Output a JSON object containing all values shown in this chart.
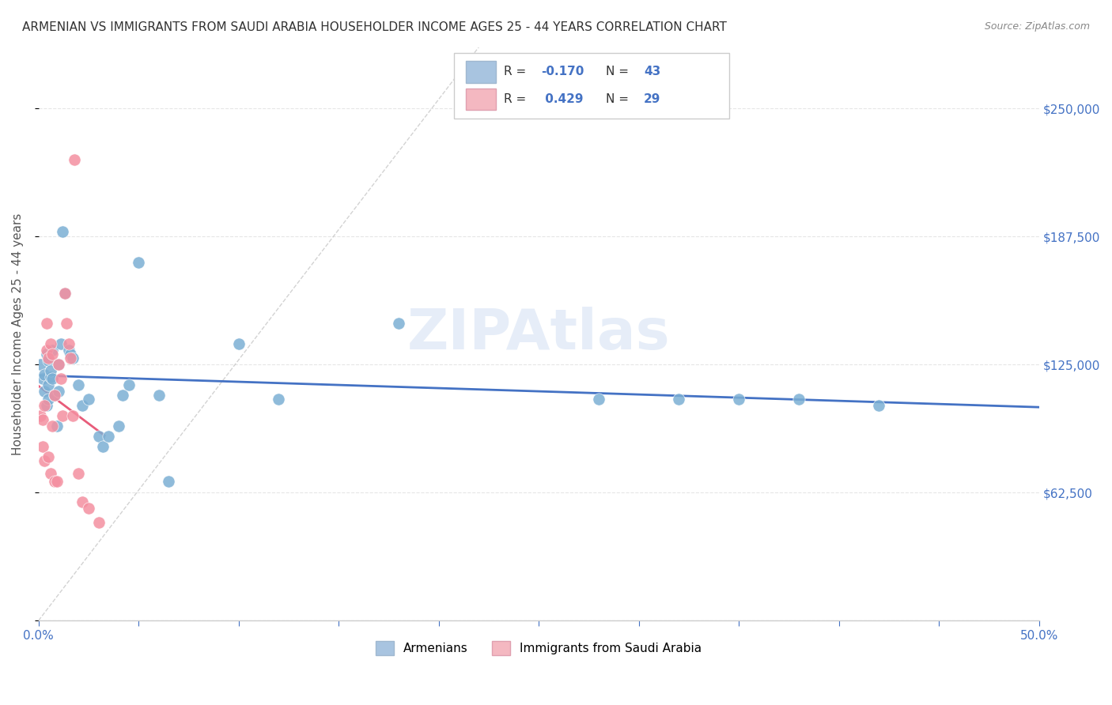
{
  "title": "ARMENIAN VS IMMIGRANTS FROM SAUDI ARABIA HOUSEHOLDER INCOME AGES 25 - 44 YEARS CORRELATION CHART",
  "source": "Source: ZipAtlas.com",
  "ylabel": "Householder Income Ages 25 - 44 years",
  "xlim": [
    0.0,
    0.5
  ],
  "ylim": [
    0,
    280000
  ],
  "yticks": [
    0,
    62500,
    125000,
    187500,
    250000
  ],
  "ytick_labels": [
    "",
    "$62,500",
    "$125,000",
    "$187,500",
    "$250,000"
  ],
  "xticks": [
    0.0,
    0.05,
    0.1,
    0.15,
    0.2,
    0.25,
    0.3,
    0.35,
    0.4,
    0.45,
    0.5
  ],
  "watermark": "ZIPAtlas",
  "legend_armenian_R": "-0.170",
  "legend_armenian_N": "43",
  "legend_saudi_R": "0.429",
  "legend_saudi_N": "29",
  "armenian_color": "#a8c4e0",
  "armenian_scatter_color": "#7bafd4",
  "saudi_color": "#f4b8c1",
  "saudi_scatter_color": "#f48fa0",
  "trend_armenian_color": "#4472c4",
  "trend_saudi_color": "#e85c7a",
  "diagonal_color": "#c0c0c0",
  "background_color": "#ffffff",
  "grid_color": "#e0e0e0",
  "title_color": "#333333",
  "axis_color": "#4472c4",
  "armenian_x": [
    0.001,
    0.002,
    0.003,
    0.003,
    0.004,
    0.004,
    0.005,
    0.005,
    0.005,
    0.006,
    0.006,
    0.007,
    0.007,
    0.008,
    0.009,
    0.01,
    0.01,
    0.011,
    0.012,
    0.013,
    0.015,
    0.016,
    0.017,
    0.02,
    0.022,
    0.025,
    0.03,
    0.032,
    0.035,
    0.04,
    0.042,
    0.045,
    0.05,
    0.06,
    0.065,
    0.1,
    0.12,
    0.18,
    0.28,
    0.32,
    0.35,
    0.38,
    0.42
  ],
  "armenian_y": [
    125000,
    118000,
    112000,
    120000,
    105000,
    130000,
    115000,
    108000,
    127000,
    119000,
    122000,
    132000,
    118000,
    110000,
    95000,
    125000,
    112000,
    135000,
    190000,
    160000,
    132000,
    130000,
    128000,
    115000,
    105000,
    108000,
    90000,
    85000,
    90000,
    95000,
    110000,
    115000,
    175000,
    110000,
    68000,
    135000,
    108000,
    145000,
    108000,
    108000,
    108000,
    108000,
    105000
  ],
  "saudi_x": [
    0.001,
    0.002,
    0.002,
    0.003,
    0.003,
    0.004,
    0.004,
    0.005,
    0.005,
    0.006,
    0.006,
    0.007,
    0.007,
    0.008,
    0.008,
    0.009,
    0.01,
    0.011,
    0.012,
    0.013,
    0.014,
    0.015,
    0.016,
    0.017,
    0.018,
    0.02,
    0.022,
    0.025,
    0.03
  ],
  "saudi_y": [
    100000,
    98000,
    85000,
    105000,
    78000,
    132000,
    145000,
    128000,
    80000,
    135000,
    72000,
    130000,
    95000,
    110000,
    68000,
    68000,
    125000,
    118000,
    100000,
    160000,
    145000,
    135000,
    128000,
    100000,
    225000,
    72000,
    58000,
    55000,
    48000
  ]
}
